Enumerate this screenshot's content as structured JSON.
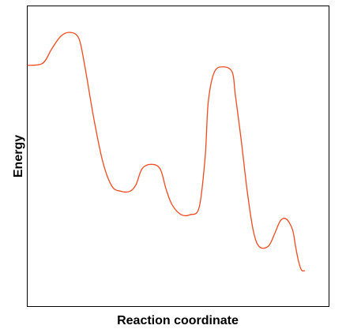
{
  "chart_data": {
    "type": "line",
    "title": "",
    "xlabel": "Reaction coordinate",
    "ylabel": "Energy",
    "xlim": [
      0,
      100
    ],
    "ylim": [
      0,
      100
    ],
    "grid": false,
    "legend": "none",
    "x_ticks_shown": false,
    "y_ticks_shown": false,
    "series": [
      {
        "color": "#f04a1f",
        "points": [
          [
            0,
            80.3
          ],
          [
            5,
            81.0
          ],
          [
            8,
            85.8
          ],
          [
            11,
            90.0
          ],
          [
            14,
            91.3
          ],
          [
            17,
            89.3
          ],
          [
            19,
            80.0
          ],
          [
            22,
            62.5
          ],
          [
            25,
            48.0
          ],
          [
            28,
            40.0
          ],
          [
            31,
            38.3
          ],
          [
            34,
            38.3
          ],
          [
            36,
            40.5
          ],
          [
            38,
            45.8
          ],
          [
            41,
            47.3
          ],
          [
            44,
            45.8
          ],
          [
            46,
            39.0
          ],
          [
            48,
            33.8
          ],
          [
            51,
            30.5
          ],
          [
            54,
            30.5
          ],
          [
            57,
            33.0
          ],
          [
            59,
            50.0
          ],
          [
            60,
            68.0
          ],
          [
            62,
            78.0
          ],
          [
            65,
            79.8
          ],
          [
            68,
            78.0
          ],
          [
            69,
            70.5
          ],
          [
            71,
            55.0
          ],
          [
            73,
            38.0
          ],
          [
            75,
            25.0
          ],
          [
            77,
            19.8
          ],
          [
            80,
            20.0
          ],
          [
            82,
            24.0
          ],
          [
            84,
            28.5
          ],
          [
            86,
            29.0
          ],
          [
            88,
            25.5
          ],
          [
            89,
            20.0
          ],
          [
            90,
            15.0
          ],
          [
            91,
            12.0
          ],
          [
            92,
            11.8
          ]
        ]
      }
    ]
  }
}
